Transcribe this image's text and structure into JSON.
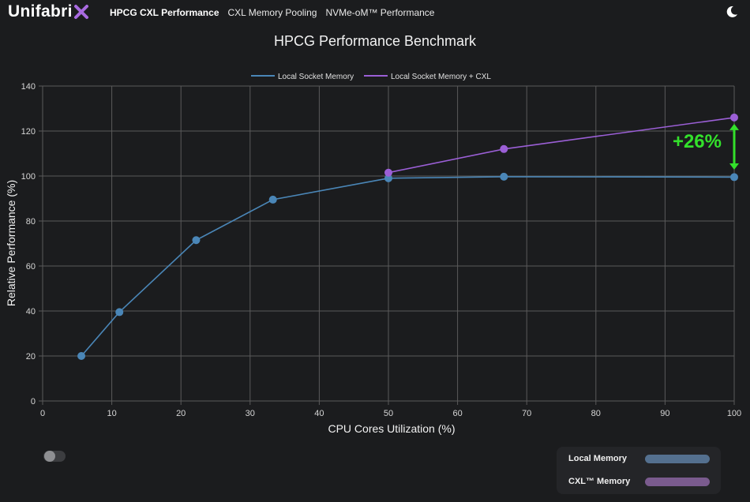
{
  "app": {
    "brand": "Unifabri",
    "brand_suffix": "X"
  },
  "nav": {
    "items": [
      "HPCG CXL Performance",
      "CXL Memory Pooling",
      "NVMe-oM™ Performance"
    ],
    "active": 0
  },
  "colors": {
    "local": "#4a86b7",
    "cxl": "#9b5fd6",
    "annotation": "#33e02b",
    "background": "#1b1c1e",
    "grid": "#5a5a5a"
  },
  "chart_data": {
    "type": "line",
    "title": "HPCG Performance Benchmark",
    "xlabel": "CPU Cores Utilization (%)",
    "ylabel": "Relative Performance (%)",
    "xlim": [
      0,
      100
    ],
    "ylim": [
      0,
      140
    ],
    "xticks": [
      0,
      10,
      20,
      30,
      40,
      50,
      60,
      70,
      80,
      90,
      100
    ],
    "yticks": [
      0,
      20,
      40,
      60,
      80,
      100,
      120,
      140
    ],
    "grid": true,
    "legend_position": "top-center",
    "series": [
      {
        "name": "Local Socket Memory",
        "color": "#4a86b7",
        "points": [
          [
            5.6,
            20
          ],
          [
            11.1,
            39.5
          ],
          [
            22.2,
            71.5
          ],
          [
            33.3,
            89.5
          ],
          [
            50,
            99
          ],
          [
            66.7,
            99.7
          ],
          [
            100,
            99.5
          ]
        ]
      },
      {
        "name": "Local Socket Memory + CXL",
        "color": "#9b5fd6",
        "points": [
          [
            50,
            101.5
          ],
          [
            66.7,
            112
          ],
          [
            100,
            126
          ]
        ]
      }
    ],
    "annotation": {
      "text": "+26%",
      "x": 100,
      "y_from": 126,
      "y_to": 100
    }
  },
  "bottom_legend": {
    "items": [
      {
        "label": "Local Memory",
        "color": "#54708f"
      },
      {
        "label": "CXL™ Memory",
        "color": "#7a5b8e"
      }
    ]
  }
}
